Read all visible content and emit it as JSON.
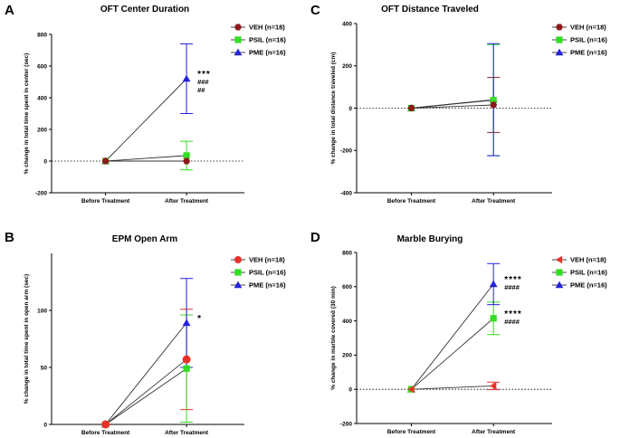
{
  "colors": {
    "VEH": "#8B1A1A",
    "VEH_D": "#E8302A",
    "PSIL": "#33DD22",
    "PME": "#2222DD",
    "line": "#333333"
  },
  "chart_data": [
    {
      "panel": "A",
      "type": "line",
      "title": "OFT Center Duration",
      "ylabel": "% change in total time spent in center (sec)",
      "categories": [
        "Before Treatment",
        "After Treatment"
      ],
      "ylim": [
        -200,
        800
      ],
      "yticks": [
        -200,
        0,
        200,
        400,
        600,
        800
      ],
      "ytick_labels": [
        "-200",
        "0",
        "200",
        "400",
        "600",
        "800"
      ],
      "series": [
        {
          "name": "VEH (n=18)",
          "key": "VEH",
          "marker": "hexagon",
          "values": [
            0,
            0
          ],
          "err": [
            0,
            0
          ]
        },
        {
          "name": "PSIL (n=16)",
          "key": "PSIL",
          "marker": "square",
          "values": [
            0,
            35
          ],
          "err": [
            0,
            90
          ]
        },
        {
          "name": "PME (n=16)",
          "key": "PME",
          "marker": "triangle",
          "values": [
            0,
            520
          ],
          "err": [
            0,
            220
          ]
        }
      ],
      "annotations": [
        {
          "text": "***",
          "series": "PME",
          "x_index": 1,
          "value": 520
        },
        {
          "text": "###",
          "series": "PME",
          "x_index": 1,
          "value": 520
        },
        {
          "text": "##",
          "series": "PME",
          "x_index": 1,
          "value": 520
        }
      ]
    },
    {
      "panel": "C",
      "type": "line",
      "title": "OFT Distance Traveled",
      "ylabel": "% change in total distance traveled (cm)",
      "categories": [
        "Before Treatment",
        "After Treatment"
      ],
      "ylim": [
        -400,
        400
      ],
      "yticks": [
        -400,
        -200,
        0,
        200,
        400
      ],
      "ytick_labels": [
        "-400",
        "-200",
        "0",
        "200",
        "400"
      ],
      "series": [
        {
          "name": "VEH (n=18)",
          "key": "VEH",
          "marker": "hexagon",
          "values": [
            0,
            15
          ],
          "err": [
            0,
            130
          ]
        },
        {
          "name": "PSIL (n=16)",
          "key": "PSIL",
          "marker": "square",
          "values": [
            0,
            38
          ],
          "err": [
            0,
            262
          ]
        },
        {
          "name": "PME (n=16)",
          "key": "PME",
          "marker": "triangle",
          "values": [
            0,
            40
          ],
          "err": [
            0,
            265
          ]
        }
      ],
      "annotations": []
    },
    {
      "panel": "B",
      "type": "line",
      "title": "EPM Open Arm",
      "ylabel": "% change in total time spent in open arm (sec)",
      "categories": [
        "Before Treatment",
        "After Treatment"
      ],
      "ylim": [
        0,
        150
      ],
      "yticks": [
        0,
        50,
        100
      ],
      "ytick_labels": [
        "0",
        "50",
        "100"
      ],
      "series": [
        {
          "name": "VEH (n=18)",
          "key": "VEH_D",
          "marker": "circle",
          "values": [
            0,
            57
          ],
          "err": [
            0,
            44
          ]
        },
        {
          "name": "PSIL (n=16)",
          "key": "PSIL",
          "marker": "square",
          "values": [
            0,
            49
          ],
          "err": [
            0,
            47
          ]
        },
        {
          "name": "PME (n=16)",
          "key": "PME",
          "marker": "triangle",
          "values": [
            0,
            89
          ],
          "err": [
            0,
            39
          ]
        }
      ],
      "annotations": [
        {
          "text": "*",
          "series": "PME",
          "x_index": 1,
          "value": 89
        }
      ]
    },
    {
      "panel": "D",
      "type": "line",
      "title": "Marble Burying",
      "ylabel": "% change in marble covered (30 min)",
      "categories": [
        "Before Treatment",
        "After Treatment"
      ],
      "ylim": [
        -200,
        800
      ],
      "yticks": [
        -200,
        0,
        200,
        400,
        600,
        800
      ],
      "ytick_labels": [
        "-200",
        "0",
        "200",
        "400",
        "600",
        "800"
      ],
      "series": [
        {
          "name": "VEH (n=18)",
          "key": "VEH_D",
          "marker": "left-triangle",
          "values": [
            0,
            20
          ],
          "err": [
            0,
            22
          ]
        },
        {
          "name": "PSIL (n=16)",
          "key": "PSIL",
          "marker": "square",
          "values": [
            0,
            415
          ],
          "err": [
            0,
            95
          ]
        },
        {
          "name": "PME (n=16)",
          "key": "PME",
          "marker": "triangle",
          "values": [
            0,
            615
          ],
          "err": [
            0,
            120
          ]
        }
      ],
      "annotations": [
        {
          "text": "****",
          "series": "PME",
          "x_index": 1,
          "value": 615
        },
        {
          "text": "####",
          "series": "PME",
          "x_index": 1,
          "value": 615
        },
        {
          "text": "****",
          "series": "PSIL",
          "x_index": 1,
          "value": 415
        },
        {
          "text": "####",
          "series": "PSIL",
          "x_index": 1,
          "value": 415
        }
      ]
    }
  ]
}
